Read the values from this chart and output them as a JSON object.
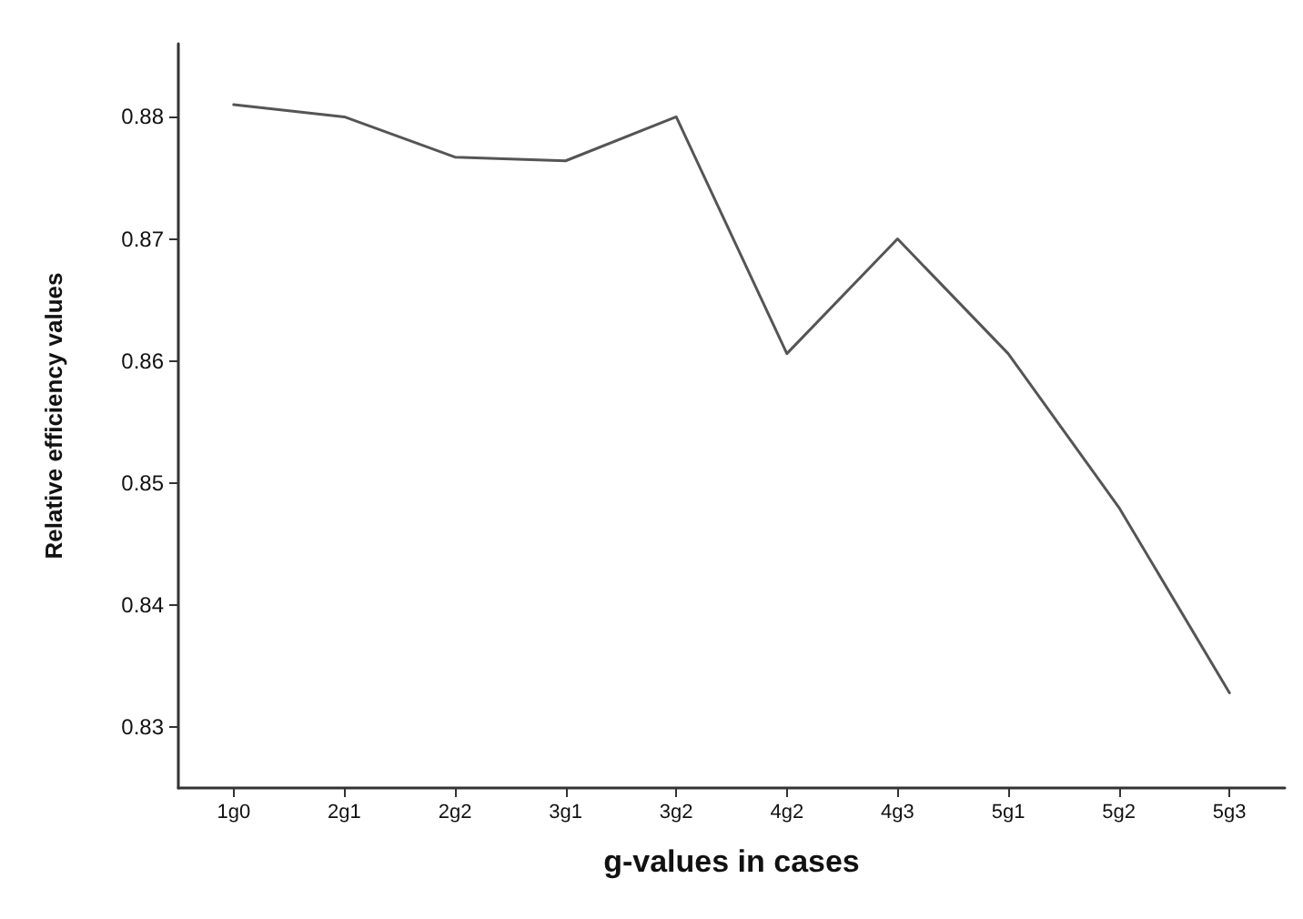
{
  "chart_data": {
    "type": "line",
    "xlabel": "g-values in cases",
    "ylabel": "Relative efficiency values",
    "categories": [
      "1g0",
      "2g1",
      "2g2",
      "3g1",
      "3g2",
      "4g2",
      "4g3",
      "5g1",
      "5g2",
      "5g3"
    ],
    "series": [
      {
        "color": "#555555",
        "values": [
          0.881,
          0.88,
          0.8767,
          0.8764,
          0.88,
          0.8606,
          0.87,
          0.8606,
          0.848,
          0.8328
        ]
      }
    ],
    "ylim": [
      0.825,
      0.886
    ],
    "yticks": [
      0.83,
      0.84,
      0.85,
      0.86,
      0.87,
      0.88
    ],
    "grid": false,
    "marker": "none",
    "line_style": "solid"
  }
}
